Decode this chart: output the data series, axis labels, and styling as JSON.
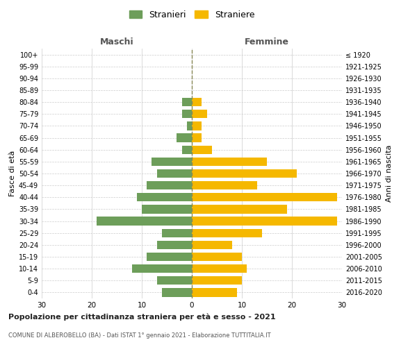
{
  "age_groups": [
    "0-4",
    "5-9",
    "10-14",
    "15-19",
    "20-24",
    "25-29",
    "30-34",
    "35-39",
    "40-44",
    "45-49",
    "50-54",
    "55-59",
    "60-64",
    "65-69",
    "70-74",
    "75-79",
    "80-84",
    "85-89",
    "90-94",
    "95-99",
    "100+"
  ],
  "birth_years": [
    "2016-2020",
    "2011-2015",
    "2006-2010",
    "2001-2005",
    "1996-2000",
    "1991-1995",
    "1986-1990",
    "1981-1985",
    "1976-1980",
    "1971-1975",
    "1966-1970",
    "1961-1965",
    "1956-1960",
    "1951-1955",
    "1946-1950",
    "1941-1945",
    "1936-1940",
    "1931-1935",
    "1926-1930",
    "1921-1925",
    "≤ 1920"
  ],
  "males": [
    6,
    7,
    12,
    9,
    7,
    6,
    19,
    10,
    11,
    9,
    7,
    8,
    2,
    3,
    1,
    2,
    2,
    0,
    0,
    0,
    0
  ],
  "females": [
    9,
    10,
    11,
    10,
    8,
    14,
    29,
    19,
    29,
    13,
    21,
    15,
    4,
    2,
    2,
    3,
    2,
    0,
    0,
    0,
    0
  ],
  "male_color": "#6d9e5a",
  "female_color": "#f5b800",
  "title1": "Popolazione per cittadinanza straniera per età e sesso - 2021",
  "title2": "COMUNE DI ALBEROBELLO (BA) - Dati ISTAT 1° gennaio 2021 - Elaborazione TUTTITALIA.IT",
  "xlabel_left": "Maschi",
  "xlabel_right": "Femmine",
  "ylabel_left": "Fasce di età",
  "ylabel_right": "Anni di nascita",
  "legend_male": "Stranieri",
  "legend_female": "Straniere",
  "xlim": 30,
  "background_color": "#ffffff",
  "grid_color": "#cccccc"
}
